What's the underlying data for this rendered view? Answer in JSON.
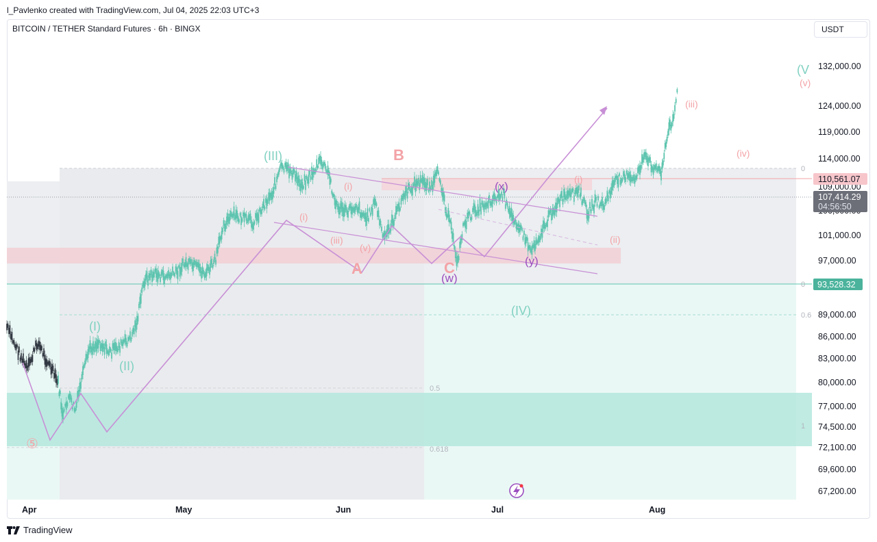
{
  "header": {
    "attribution": "l_Pavlenko created with TradingView.com, Jul 04, 2025 22:03 UTC+3",
    "symbol": "BITCOIN / TETHER Standard Futures · 6h · BINGX",
    "currency": "USDT"
  },
  "footer": {
    "brand": "TradingView"
  },
  "colors": {
    "candle": "#5cc4ae",
    "candle_old": "#131722",
    "wave_line": "#c88fd6",
    "wave_teal": "#7fd1c1",
    "wave_pink": "#f3a3a7",
    "wave_purple": "#9c4fbf",
    "zone_pink": "#f7d5d9",
    "zone_teal": "#b4e8dd"
  },
  "price_tags": {
    "resistance": "110,561.07",
    "last_price": "107,414.29",
    "countdown": "04:56:50",
    "support": "93,528.32"
  },
  "chart_data": {
    "type": "candlestick",
    "x_axis": {
      "ticks": [
        "Apr",
        "May",
        "Jun",
        "Jul",
        "Aug"
      ]
    },
    "y_axis": {
      "scale": "log",
      "ticks": [
        "132,000.00",
        "124,000.00",
        "119,000.00",
        "114,000.00",
        "109,000.00",
        "106,000.00",
        "101,000.00",
        "97,000.00",
        "89,000.00",
        "86,000.00",
        "83,000.00",
        "80,000.00",
        "77,000.00",
        "74,500.00",
        "72,100.00",
        "69,600.00",
        "67,200.00"
      ]
    },
    "fib_labels": {
      "level_0": "0",
      "level_05": "0.5",
      "level_0618": "0.618",
      "level_1_right": "1",
      "level_0_right": "0",
      "level_06_right": "0.6"
    },
    "wave_labels": {
      "w5": "⑤",
      "wI": "(I)",
      "wII": "(II)",
      "wIII": "(III)",
      "wIV": "(IV)",
      "wV": "(V",
      "A": "A",
      "B": "B",
      "C": "C",
      "ai": "(i)",
      "aiii": "(iii)",
      "av": "(v)",
      "bi": "(i)",
      "w": "(w)",
      "x": "(x)",
      "y": "(y)",
      "fi": "(i)",
      "fii": "(ii)",
      "fiii": "(iii)",
      "fiv": "(iv)",
      "fv": "(v)"
    }
  }
}
